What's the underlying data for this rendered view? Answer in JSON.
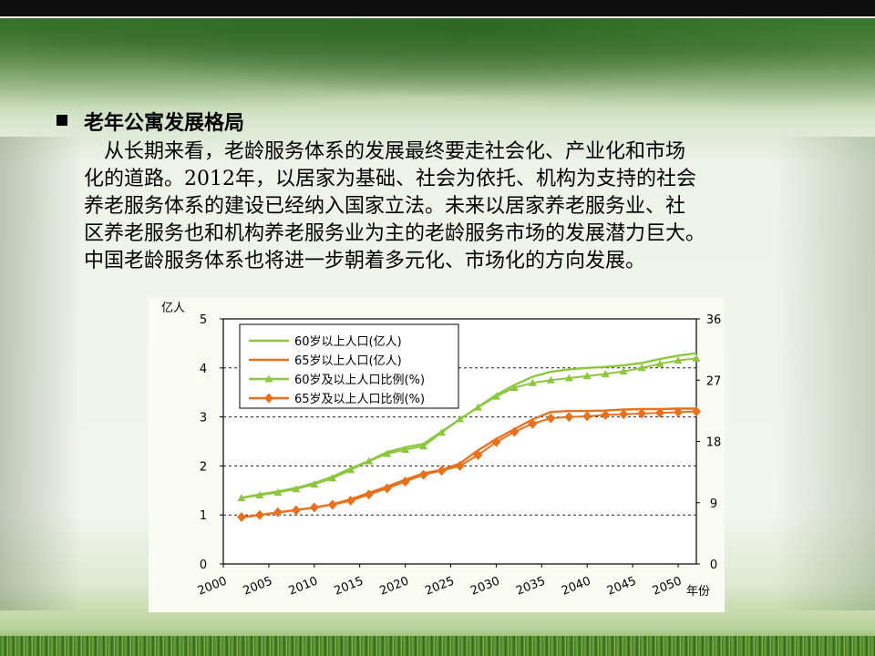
{
  "slide": {
    "heading": "老年公寓发展格局",
    "paragraph_lines": [
      "从长期来看，老龄服务体系的发展最终要走社会化、产业化和市场",
      "化的道路。2012年，以居家为基础、社会为依托、机构为支持的社会",
      "养老服务体系的建设已经纳入国家立法。未来以居家养老服务业、社",
      "区养老服务也和机构养老服务业为主的老龄服务市场的发展潜力巨大。",
      "中国老龄服务体系也将进一步朝着多元化、市场化的方向发展。"
    ]
  },
  "chart_data": {
    "type": "line",
    "x": [
      2002,
      2004,
      2006,
      2008,
      2010,
      2012,
      2014,
      2016,
      2018,
      2020,
      2022,
      2024,
      2026,
      2028,
      2030,
      2032,
      2034,
      2036,
      2038,
      2040,
      2042,
      2044,
      2046,
      2048,
      2050,
      2052
    ],
    "xticks": [
      "2000",
      "2005",
      "2010",
      "2015",
      "2020",
      "2025",
      "2030",
      "2035",
      "2040",
      "2045",
      "2050"
    ],
    "xlabel": "年份",
    "ylabel_left": "亿人",
    "ylabel_right": "%",
    "ylim_left": [
      0,
      5
    ],
    "ylim_right": [
      0,
      36
    ],
    "yticks_left": [
      "0",
      "1",
      "2",
      "3",
      "4",
      "5"
    ],
    "yticks_right": [
      "0",
      "9",
      "18",
      "27",
      "36"
    ],
    "grid": "dashed horizontal at 1, 2, 3, 4",
    "legend_position": "top-left",
    "series": [
      {
        "name": "60岁以上人口(亿人)",
        "axis": "left",
        "color": "#8dc63f",
        "marker": "none",
        "values": [
          1.35,
          1.42,
          1.48,
          1.55,
          1.65,
          1.78,
          1.95,
          2.1,
          2.28,
          2.38,
          2.45,
          2.7,
          2.95,
          3.2,
          3.45,
          3.65,
          3.82,
          3.92,
          3.97,
          4.0,
          4.02,
          4.05,
          4.1,
          4.18,
          4.25,
          4.3
        ]
      },
      {
        "name": "65岁以上人口(亿人)",
        "axis": "left",
        "color": "#e8711f",
        "marker": "none",
        "values": [
          0.95,
          1.0,
          1.05,
          1.1,
          1.15,
          1.22,
          1.32,
          1.45,
          1.58,
          1.72,
          1.85,
          1.92,
          2.05,
          2.32,
          2.55,
          2.75,
          2.95,
          3.1,
          3.12,
          3.12,
          3.13,
          3.15,
          3.16,
          3.16,
          3.17,
          3.17
        ]
      },
      {
        "name": "60岁及以上人口比例(%)",
        "axis": "right",
        "color": "#8dc63f",
        "marker": "triangle",
        "values": [
          9.7,
          10.1,
          10.5,
          11.0,
          11.7,
          12.6,
          13.8,
          15.1,
          16.2,
          16.8,
          17.3,
          19.3,
          21.3,
          23.0,
          24.6,
          25.9,
          26.6,
          27.0,
          27.3,
          27.6,
          27.9,
          28.3,
          28.8,
          29.4,
          29.9,
          30.2
        ]
      },
      {
        "name": "65岁及以上人口比例(%)",
        "axis": "right",
        "color": "#e8711f",
        "marker": "diamond",
        "values": [
          6.9,
          7.2,
          7.6,
          7.9,
          8.3,
          8.7,
          9.3,
          10.2,
          11.1,
          12.1,
          13.1,
          13.7,
          14.4,
          16.0,
          17.9,
          19.4,
          20.6,
          21.4,
          21.6,
          21.7,
          21.9,
          22.0,
          22.1,
          22.2,
          22.3,
          22.4
        ]
      }
    ]
  }
}
